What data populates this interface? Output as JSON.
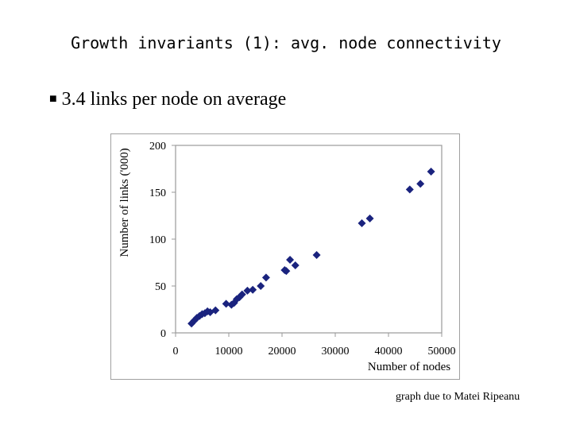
{
  "slide": {
    "title": "Growth invariants (1): avg. node connectivity",
    "bullet": "3.4 links per node on average",
    "credit": "graph due to Matei Ripeanu"
  },
  "chart_data": {
    "type": "scatter",
    "title": "",
    "xlabel": "Number of nodes",
    "ylabel": "Number of links ('000)",
    "xlim": [
      0,
      50000
    ],
    "ylim": [
      0,
      200
    ],
    "xticks": [
      0,
      10000,
      20000,
      30000,
      40000,
      50000
    ],
    "yticks": [
      0,
      50,
      100,
      150,
      200
    ],
    "grid": false,
    "marker": "diamond",
    "marker_color": "#1a237e",
    "points": [
      {
        "x": 3000,
        "y": 10
      },
      {
        "x": 3500,
        "y": 13
      },
      {
        "x": 4000,
        "y": 16
      },
      {
        "x": 4500,
        "y": 18
      },
      {
        "x": 5000,
        "y": 20
      },
      {
        "x": 5500,
        "y": 21
      },
      {
        "x": 6000,
        "y": 23
      },
      {
        "x": 6500,
        "y": 22
      },
      {
        "x": 7500,
        "y": 24
      },
      {
        "x": 9500,
        "y": 31
      },
      {
        "x": 10500,
        "y": 30
      },
      {
        "x": 11000,
        "y": 32
      },
      {
        "x": 11500,
        "y": 36
      },
      {
        "x": 12000,
        "y": 38
      },
      {
        "x": 12500,
        "y": 41
      },
      {
        "x": 13500,
        "y": 45
      },
      {
        "x": 14500,
        "y": 46
      },
      {
        "x": 16000,
        "y": 50
      },
      {
        "x": 17000,
        "y": 59
      },
      {
        "x": 20500,
        "y": 67
      },
      {
        "x": 20800,
        "y": 66
      },
      {
        "x": 21500,
        "y": 78
      },
      {
        "x": 22500,
        "y": 72
      },
      {
        "x": 26500,
        "y": 83
      },
      {
        "x": 35000,
        "y": 117
      },
      {
        "x": 36500,
        "y": 122
      },
      {
        "x": 44000,
        "y": 153
      },
      {
        "x": 46000,
        "y": 159
      },
      {
        "x": 48000,
        "y": 172
      }
    ]
  }
}
